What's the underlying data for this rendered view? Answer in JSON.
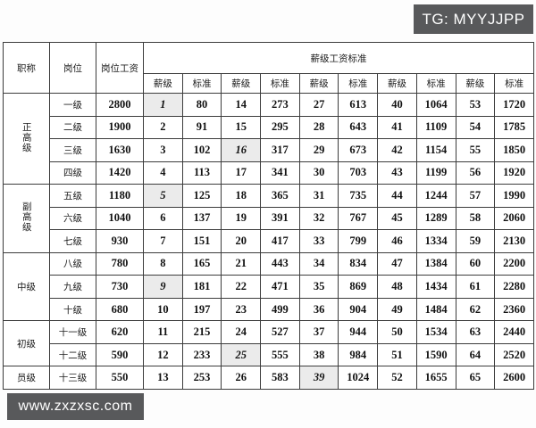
{
  "page": {
    "tg_badge": "TG: MYYJJPP",
    "watermark": "www.zxzxsc.com"
  },
  "table": {
    "headers": {
      "title_col": "职称",
      "position_col": "岗位",
      "post_wage_col": "岗位工资",
      "span_header": "薪级工资标准",
      "grade_label": "薪级",
      "standard_label": "标准",
      "pair_count": 5
    },
    "groups": [
      {
        "title": "正高级",
        "vertical": true,
        "rows": 4
      },
      {
        "title": "副高级",
        "vertical": true,
        "rows": 3
      },
      {
        "title": "中级",
        "vertical": false,
        "rows": 3
      },
      {
        "title": "初级",
        "vertical": false,
        "rows": 2
      },
      {
        "title": "员级",
        "vertical": false,
        "rows": 1
      }
    ],
    "rows": [
      {
        "position": "一级",
        "post_wage": "2800",
        "cells": [
          "1",
          "80",
          "14",
          "273",
          "27",
          "613",
          "40",
          "1064",
          "53",
          "1720"
        ],
        "em": [
          0
        ]
      },
      {
        "position": "二级",
        "post_wage": "1900",
        "cells": [
          "2",
          "91",
          "15",
          "295",
          "28",
          "643",
          "41",
          "1109",
          "54",
          "1785"
        ],
        "em": []
      },
      {
        "position": "三级",
        "post_wage": "1630",
        "cells": [
          "3",
          "102",
          "16",
          "317",
          "29",
          "673",
          "42",
          "1154",
          "55",
          "1850"
        ],
        "em": [
          2
        ]
      },
      {
        "position": "四级",
        "post_wage": "1420",
        "cells": [
          "4",
          "113",
          "17",
          "341",
          "30",
          "703",
          "43",
          "1199",
          "56",
          "1920"
        ],
        "em": []
      },
      {
        "position": "五级",
        "post_wage": "1180",
        "cells": [
          "5",
          "125",
          "18",
          "365",
          "31",
          "735",
          "44",
          "1244",
          "57",
          "1990"
        ],
        "em": [
          0
        ]
      },
      {
        "position": "六级",
        "post_wage": "1040",
        "cells": [
          "6",
          "137",
          "19",
          "391",
          "32",
          "767",
          "45",
          "1289",
          "58",
          "2060"
        ],
        "em": []
      },
      {
        "position": "七级",
        "post_wage": "930",
        "cells": [
          "7",
          "151",
          "20",
          "417",
          "33",
          "799",
          "46",
          "1334",
          "59",
          "2130"
        ],
        "em": []
      },
      {
        "position": "八级",
        "post_wage": "780",
        "cells": [
          "8",
          "165",
          "21",
          "443",
          "34",
          "834",
          "47",
          "1384",
          "60",
          "2200"
        ],
        "em": []
      },
      {
        "position": "九级",
        "post_wage": "730",
        "cells": [
          "9",
          "181",
          "22",
          "471",
          "35",
          "869",
          "48",
          "1434",
          "61",
          "2280"
        ],
        "em": [
          0
        ]
      },
      {
        "position": "十级",
        "post_wage": "680",
        "cells": [
          "10",
          "197",
          "23",
          "499",
          "36",
          "904",
          "49",
          "1484",
          "62",
          "2360"
        ],
        "em": []
      },
      {
        "position": "十一级",
        "post_wage": "620",
        "cells": [
          "11",
          "215",
          "24",
          "527",
          "37",
          "944",
          "50",
          "1534",
          "63",
          "2440"
        ],
        "em": []
      },
      {
        "position": "十二级",
        "post_wage": "590",
        "cells": [
          "12",
          "233",
          "25",
          "555",
          "38",
          "984",
          "51",
          "1590",
          "64",
          "2520"
        ],
        "em": [
          2
        ]
      },
      {
        "position": "十三级",
        "post_wage": "550",
        "cells": [
          "13",
          "253",
          "26",
          "583",
          "39",
          "1024",
          "52",
          "1655",
          "65",
          "2600"
        ],
        "em": [
          4
        ]
      }
    ],
    "colors": {
      "badge_bg": "#58595b",
      "border": "#3c3c3c",
      "highlight_bg": "#ebebeb"
    }
  }
}
